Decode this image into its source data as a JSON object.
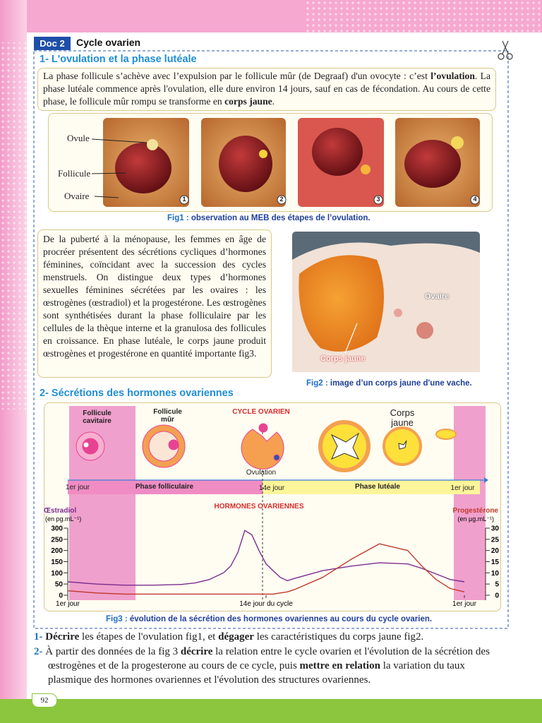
{
  "header": {
    "doc_label": "Doc 2",
    "title": "Cycle ovarien"
  },
  "section1": {
    "title": "1- L'ovulation et la phase lutéale",
    "paragraph": [
      "La phase follicule s’achève avec l’expulsion par le follicule mûr (de Degraaf) d'un ovocyte : c’est ",
      "l’ovulation",
      ". La phase lutéale commence après l'ovulation, elle dure environ 14 jours, sauf en cas de fécondation. Au cours de cette phase, le follicule mûr rompu se transforme en ",
      "corps jaune",
      "."
    ]
  },
  "fig1": {
    "labels": [
      "Ovule",
      "Follicule",
      "Ovaire"
    ],
    "photo_numbers": [
      "1",
      "2",
      "3",
      "4"
    ],
    "caption_label": "Fig1 :",
    "caption": "observation au MEB des étapes de l’ovulation."
  },
  "paragraph2": "De la puberté à la ménopause, les femmes en âge de procréer présentent des sécrétions cycliques d’hormones féminines, coïncidant avec la succession des cycles menstruels. On distingue deux types d’hormones sexuelles féminines sécrétées par les ovaires : les œstrogènes (œstradiol) et la progestérone. Les œstrogènes sont synthétisées durant la phase folliculaire par les cellules de la thèque interne et la granulosa des follicules en croissance. En phase lutéale, le corps jaune produit œstrogènes et progestérone en quantité importante fig3.",
  "fig2": {
    "labels": [
      "Ovaire",
      "Corps jaune"
    ],
    "caption_label": "Fig2 :",
    "caption": "image d’un corps jaune d'une vache."
  },
  "section2": {
    "title": "2- Sécrétions des hormones ovariennes"
  },
  "fig3_diagram": {
    "title": "CYCLE OVARIEN",
    "stages": [
      "Follicule cavitaire",
      "Follicule mûr",
      "Corps jaune"
    ],
    "ovulation": "Ovulation",
    "phase_bar": [
      "1er jour",
      "Phase folliculaire",
      "14e jour",
      "Phase lutéale",
      "1er jour"
    ]
  },
  "chart_data": {
    "type": "line",
    "title": "HORMONES OVARIENNES",
    "x": [
      0,
      2,
      4,
      6,
      8,
      9,
      10,
      11,
      11.5,
      12,
      12.5,
      13,
      13.5,
      14,
      14.5,
      15,
      15.5,
      16,
      18,
      20,
      22,
      24,
      25,
      26,
      27,
      28
    ],
    "xlim": [
      0,
      28
    ],
    "xticks": [
      {
        "value": 0,
        "label": "1er jour"
      },
      {
        "value": 14,
        "label": "14e jour du cycle"
      },
      {
        "value": 28,
        "label": "1er jour"
      }
    ],
    "ylim": [
      0,
      300
    ],
    "yticks": [
      0,
      50,
      100,
      150,
      200,
      250,
      300
    ],
    "y_unit": "(en pg.mL⁻¹)",
    "y2lim": [
      0,
      30
    ],
    "y2ticks": [
      0,
      5,
      10,
      15,
      20,
      25,
      30
    ],
    "y2_unit": "(en µg.mL⁻¹)",
    "series": [
      {
        "name": "Œstradiol",
        "color": "#7b2d8e",
        "values": [
          60,
          50,
          45,
          45,
          48,
          55,
          70,
          100,
          130,
          190,
          290,
          270,
          200,
          140,
          110,
          80,
          65,
          75,
          110,
          130,
          145,
          140,
          120,
          95,
          70,
          60
        ]
      },
      {
        "name": "Progestérone",
        "color": "#c0392b",
        "axis": "y2",
        "values": [
          2,
          1,
          0.5,
          0.5,
          0.5,
          0.5,
          0.5,
          0.5,
          0.5,
          0.5,
          0.5,
          0.5,
          0.5,
          0.5,
          0.5,
          1,
          1.5,
          2.5,
          8,
          16,
          23,
          20,
          13,
          7,
          3,
          1.5
        ]
      }
    ]
  },
  "fig3": {
    "caption_label": "Fig3 :",
    "caption": "évolution de la sécrétion des hormones ovariennes au cours du cycle ovarien."
  },
  "questions": [
    {
      "number": "1-",
      "parts": [
        "Décrire",
        " les étapes de l'ovulation fig1, et ",
        "dégager",
        " les caractéristiques du corps jaune fig2."
      ]
    },
    {
      "number": "2-",
      "parts": [
        "À partir des données de la fig 3 ",
        "décrire",
        " la relation entre le cycle ovarien et l'évolution de la sécrétion des œstrogènes et de la progesterone au cours de ce cycle, puis ",
        "mettre en relation",
        " la variation du taux plasmique des hormones ovariennes et l'évolution des structures ovariennes."
      ]
    }
  ],
  "page_number": "92"
}
